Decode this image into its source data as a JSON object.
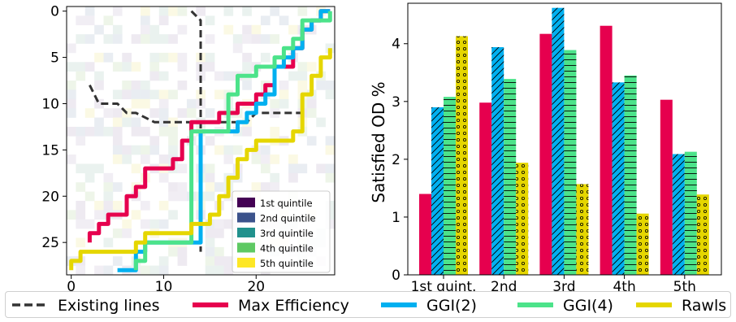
{
  "chart_data": [
    {
      "type": "map",
      "x_ticks": [
        "0",
        "10",
        "20"
      ],
      "y_ticks": [
        "0",
        "5",
        "10",
        "15",
        "20",
        "25"
      ],
      "xlim": [
        -0.5,
        28.5
      ],
      "ylim": [
        28.5,
        -0.5
      ],
      "legend": {
        "placement": "lower-right",
        "entries": [
          {
            "label": "1st quintile",
            "color": "#440154"
          },
          {
            "label": "2nd quintile",
            "color": "#3b528b"
          },
          {
            "label": "3rd quintile",
            "color": "#21918c"
          },
          {
            "label": "4th quintile",
            "color": "#5ec962"
          },
          {
            "label": "5th quintile",
            "color": "#fde725"
          }
        ]
      },
      "lines": [
        {
          "name": "Existing lines",
          "color": "#333333",
          "dashed": true,
          "points": [
            [
              13,
              0
            ],
            [
              14,
              1
            ],
            [
              14,
              26
            ]
          ]
        },
        {
          "name": "Existing lines",
          "color": "#333333",
          "dashed": true,
          "points": [
            [
              2,
              8
            ],
            [
              3,
              10
            ],
            [
              5,
              10
            ],
            [
              6,
              11
            ],
            [
              7,
              11
            ],
            [
              9,
              12
            ],
            [
              19,
              12
            ],
            [
              20,
              11
            ],
            [
              24,
              11
            ],
            [
              25,
              11
            ]
          ]
        },
        {
          "name": "Max Efficiency",
          "color": "#e6004e",
          "points": [
            [
              2,
              25
            ],
            [
              2,
              24
            ],
            [
              3,
              24
            ],
            [
              3,
              23
            ],
            [
              4,
              23
            ],
            [
              4,
              22
            ],
            [
              6,
              22
            ],
            [
              6,
              20
            ],
            [
              7,
              20
            ],
            [
              7,
              19
            ],
            [
              8,
              19
            ],
            [
              8,
              17
            ],
            [
              11,
              17
            ],
            [
              11,
              16
            ],
            [
              12,
              16
            ],
            [
              12,
              14
            ],
            [
              13,
              14
            ],
            [
              13,
              12
            ],
            [
              16,
              12
            ],
            [
              16,
              11
            ],
            [
              18,
              11
            ],
            [
              18,
              10
            ],
            [
              20,
              10
            ],
            [
              20,
              9
            ],
            [
              21,
              9
            ],
            [
              21,
              8
            ],
            [
              22,
              8
            ],
            [
              22,
              6
            ],
            [
              24,
              6
            ],
            [
              24,
              4
            ],
            [
              25,
              4
            ],
            [
              25,
              2
            ],
            [
              26,
              2
            ],
            [
              26,
              1
            ],
            [
              27,
              1
            ],
            [
              27,
              0
            ],
            [
              28,
              0
            ]
          ]
        },
        {
          "name": "GGI(2)",
          "color": "#00b0f0",
          "points": [
            [
              5,
              28
            ],
            [
              7,
              28
            ],
            [
              7,
              26
            ],
            [
              8,
              26
            ],
            [
              8,
              25
            ],
            [
              14,
              25
            ],
            [
              14,
              13
            ],
            [
              18,
              13
            ],
            [
              18,
              12
            ],
            [
              19,
              12
            ],
            [
              19,
              11
            ],
            [
              20,
              11
            ],
            [
              20,
              10
            ],
            [
              21,
              10
            ],
            [
              21,
              9
            ],
            [
              22,
              9
            ],
            [
              22,
              6
            ],
            [
              23,
              6
            ],
            [
              23,
              5
            ],
            [
              24,
              5
            ],
            [
              24,
              4
            ],
            [
              25,
              4
            ],
            [
              25,
              2
            ],
            [
              26,
              2
            ],
            [
              26,
              1
            ],
            [
              27,
              1
            ],
            [
              27,
              0
            ],
            [
              28,
              0
            ]
          ]
        },
        {
          "name": "GGI(4)",
          "color": "#4ce38a",
          "points": [
            [
              7,
              28
            ],
            [
              7,
              27
            ],
            [
              8,
              27
            ],
            [
              8,
              26
            ],
            [
              8,
              25
            ],
            [
              13,
              25
            ],
            [
              13,
              13
            ],
            [
              15,
              13
            ],
            [
              17,
              13
            ],
            [
              17,
              9
            ],
            [
              18,
              9
            ],
            [
              18,
              7
            ],
            [
              20,
              7
            ],
            [
              20,
              6
            ],
            [
              22,
              6
            ],
            [
              22,
              5
            ],
            [
              23,
              5
            ],
            [
              23,
              4
            ],
            [
              24,
              4
            ],
            [
              24,
              3
            ],
            [
              25,
              3
            ],
            [
              25,
              1
            ],
            [
              27,
              1
            ],
            [
              28,
              1
            ],
            [
              28,
              0
            ]
          ]
        },
        {
          "name": "Rawls",
          "color": "#e5d600",
          "points": [
            [
              0,
              28
            ],
            [
              0,
              27
            ],
            [
              1,
              27
            ],
            [
              1,
              26
            ],
            [
              7,
              26
            ],
            [
              7,
              25
            ],
            [
              8,
              25
            ],
            [
              8,
              24
            ],
            [
              13,
              24
            ],
            [
              13,
              23
            ],
            [
              15,
              23
            ],
            [
              15,
              22
            ],
            [
              16,
              22
            ],
            [
              16,
              20
            ],
            [
              17,
              20
            ],
            [
              17,
              18
            ],
            [
              18,
              18
            ],
            [
              18,
              16
            ],
            [
              19,
              16
            ],
            [
              19,
              15
            ],
            [
              20,
              15
            ],
            [
              20,
              14
            ],
            [
              24,
              14
            ],
            [
              24,
              13
            ],
            [
              25,
              13
            ],
            [
              25,
              9
            ],
            [
              26,
              9
            ],
            [
              26,
              7
            ],
            [
              27,
              7
            ],
            [
              27,
              5
            ],
            [
              28,
              5
            ],
            [
              28,
              4
            ]
          ]
        }
      ]
    },
    {
      "type": "bar",
      "ylabel": "Satisfied OD %",
      "categories": [
        "1st quint.",
        "2nd",
        "3rd",
        "4th",
        "5th"
      ],
      "ylim": [
        0,
        4.7
      ],
      "y_ticks": [
        "0",
        "1",
        "2",
        "3",
        "4"
      ],
      "series": [
        {
          "name": "Max Efficiency",
          "color": "#e6004e",
          "pattern": "solid",
          "values": [
            1.4,
            2.98,
            4.17,
            4.31,
            3.03
          ]
        },
        {
          "name": "GGI(2)",
          "color": "#00b0f0",
          "pattern": "diagonal",
          "values": [
            2.9,
            3.94,
            4.62,
            3.33,
            2.09
          ]
        },
        {
          "name": "GGI(4)",
          "color": "#4ce38a",
          "pattern": "horizontal",
          "values": [
            3.08,
            3.39,
            3.89,
            3.45,
            2.13
          ]
        },
        {
          "name": "Rawls",
          "color": "#e5d600",
          "pattern": "dots",
          "values": [
            4.13,
            1.94,
            1.57,
            1.06,
            1.39
          ]
        }
      ]
    }
  ],
  "legend": {
    "entries": [
      {
        "label": "Existing lines",
        "color": "#333333",
        "dashed": true
      },
      {
        "label": "Max Efficiency",
        "color": "#e6004e",
        "dashed": false
      },
      {
        "label": "GGI(2)",
        "color": "#00b0f0",
        "dashed": false
      },
      {
        "label": "GGI(4)",
        "color": "#4ce38a",
        "dashed": false
      },
      {
        "label": "Rawls",
        "color": "#e5d600",
        "dashed": false
      }
    ]
  }
}
